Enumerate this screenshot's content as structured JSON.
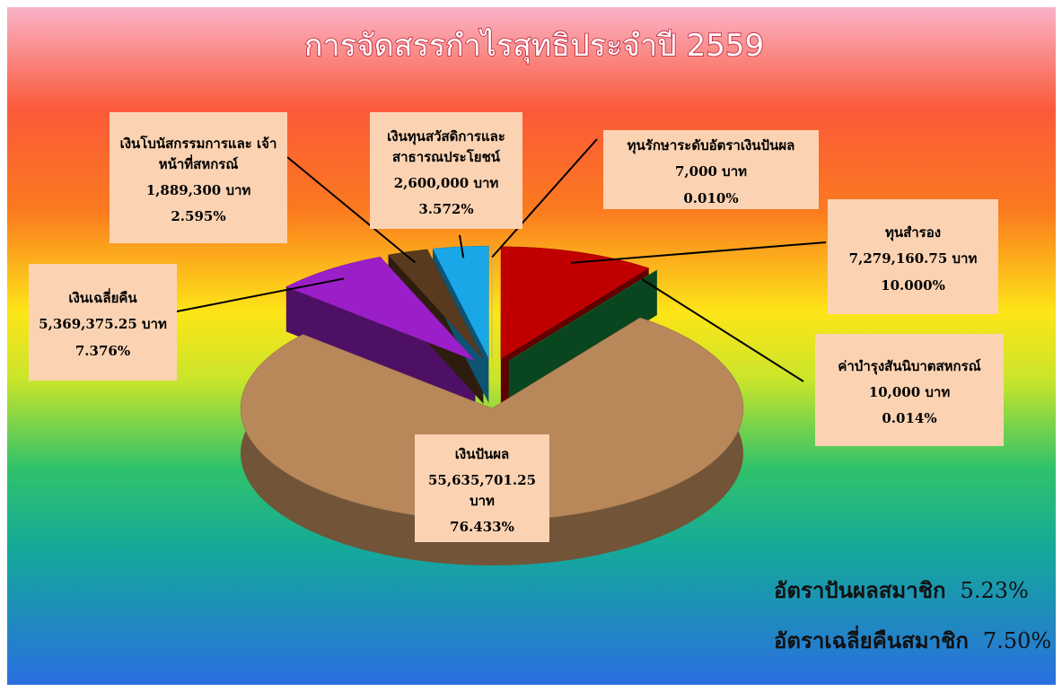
{
  "chart_data": {
    "type": "pie",
    "title": "การจัดสรรกำไรสุทธิประจำปี 2559",
    "categories": [
      "ทุนรักษาระดับอัตราเงินปันผล",
      "ทุนสำรอง",
      "ค่าบำรุงสันนิบาตสหกรณ์",
      "เงินปันผล",
      "เงินเฉลี่ยคืน",
      "เงินโบนัสกรรมการและ เจ้าหน้าที่สหกรณ์",
      "เงินทุนสวัสดิการและ สาธารณประโยชน์"
    ],
    "amount_labels": [
      "7,000 บาท",
      "7,279,160.75 บาท",
      "10,000 บาท",
      "55,635,701.25 บาท",
      "5,369,375.25 บาท",
      "1,889,300 บาท",
      "2,600,000 บาท"
    ],
    "values": [
      0.01,
      10.0,
      0.014,
      76.433,
      7.376,
      2.595,
      3.572
    ],
    "value_labels": [
      "0.010%",
      "10.000%",
      "0.014%",
      "76.433%",
      "7.376%",
      "2.595%",
      "3.572%"
    ],
    "colors": [
      "#d0d0d0",
      "#c00000",
      "#128a3e",
      "#b8875a",
      "#9b1fc8",
      "#5a3a1e",
      "#1aa7e8"
    ],
    "annotations": [
      {
        "label": "อัตราปันผลสมาชิก",
        "value_label": "5.23%"
      },
      {
        "label": "อัตราเฉลี่ยคืนสมาชิก",
        "value_label": "7.50%"
      }
    ]
  }
}
